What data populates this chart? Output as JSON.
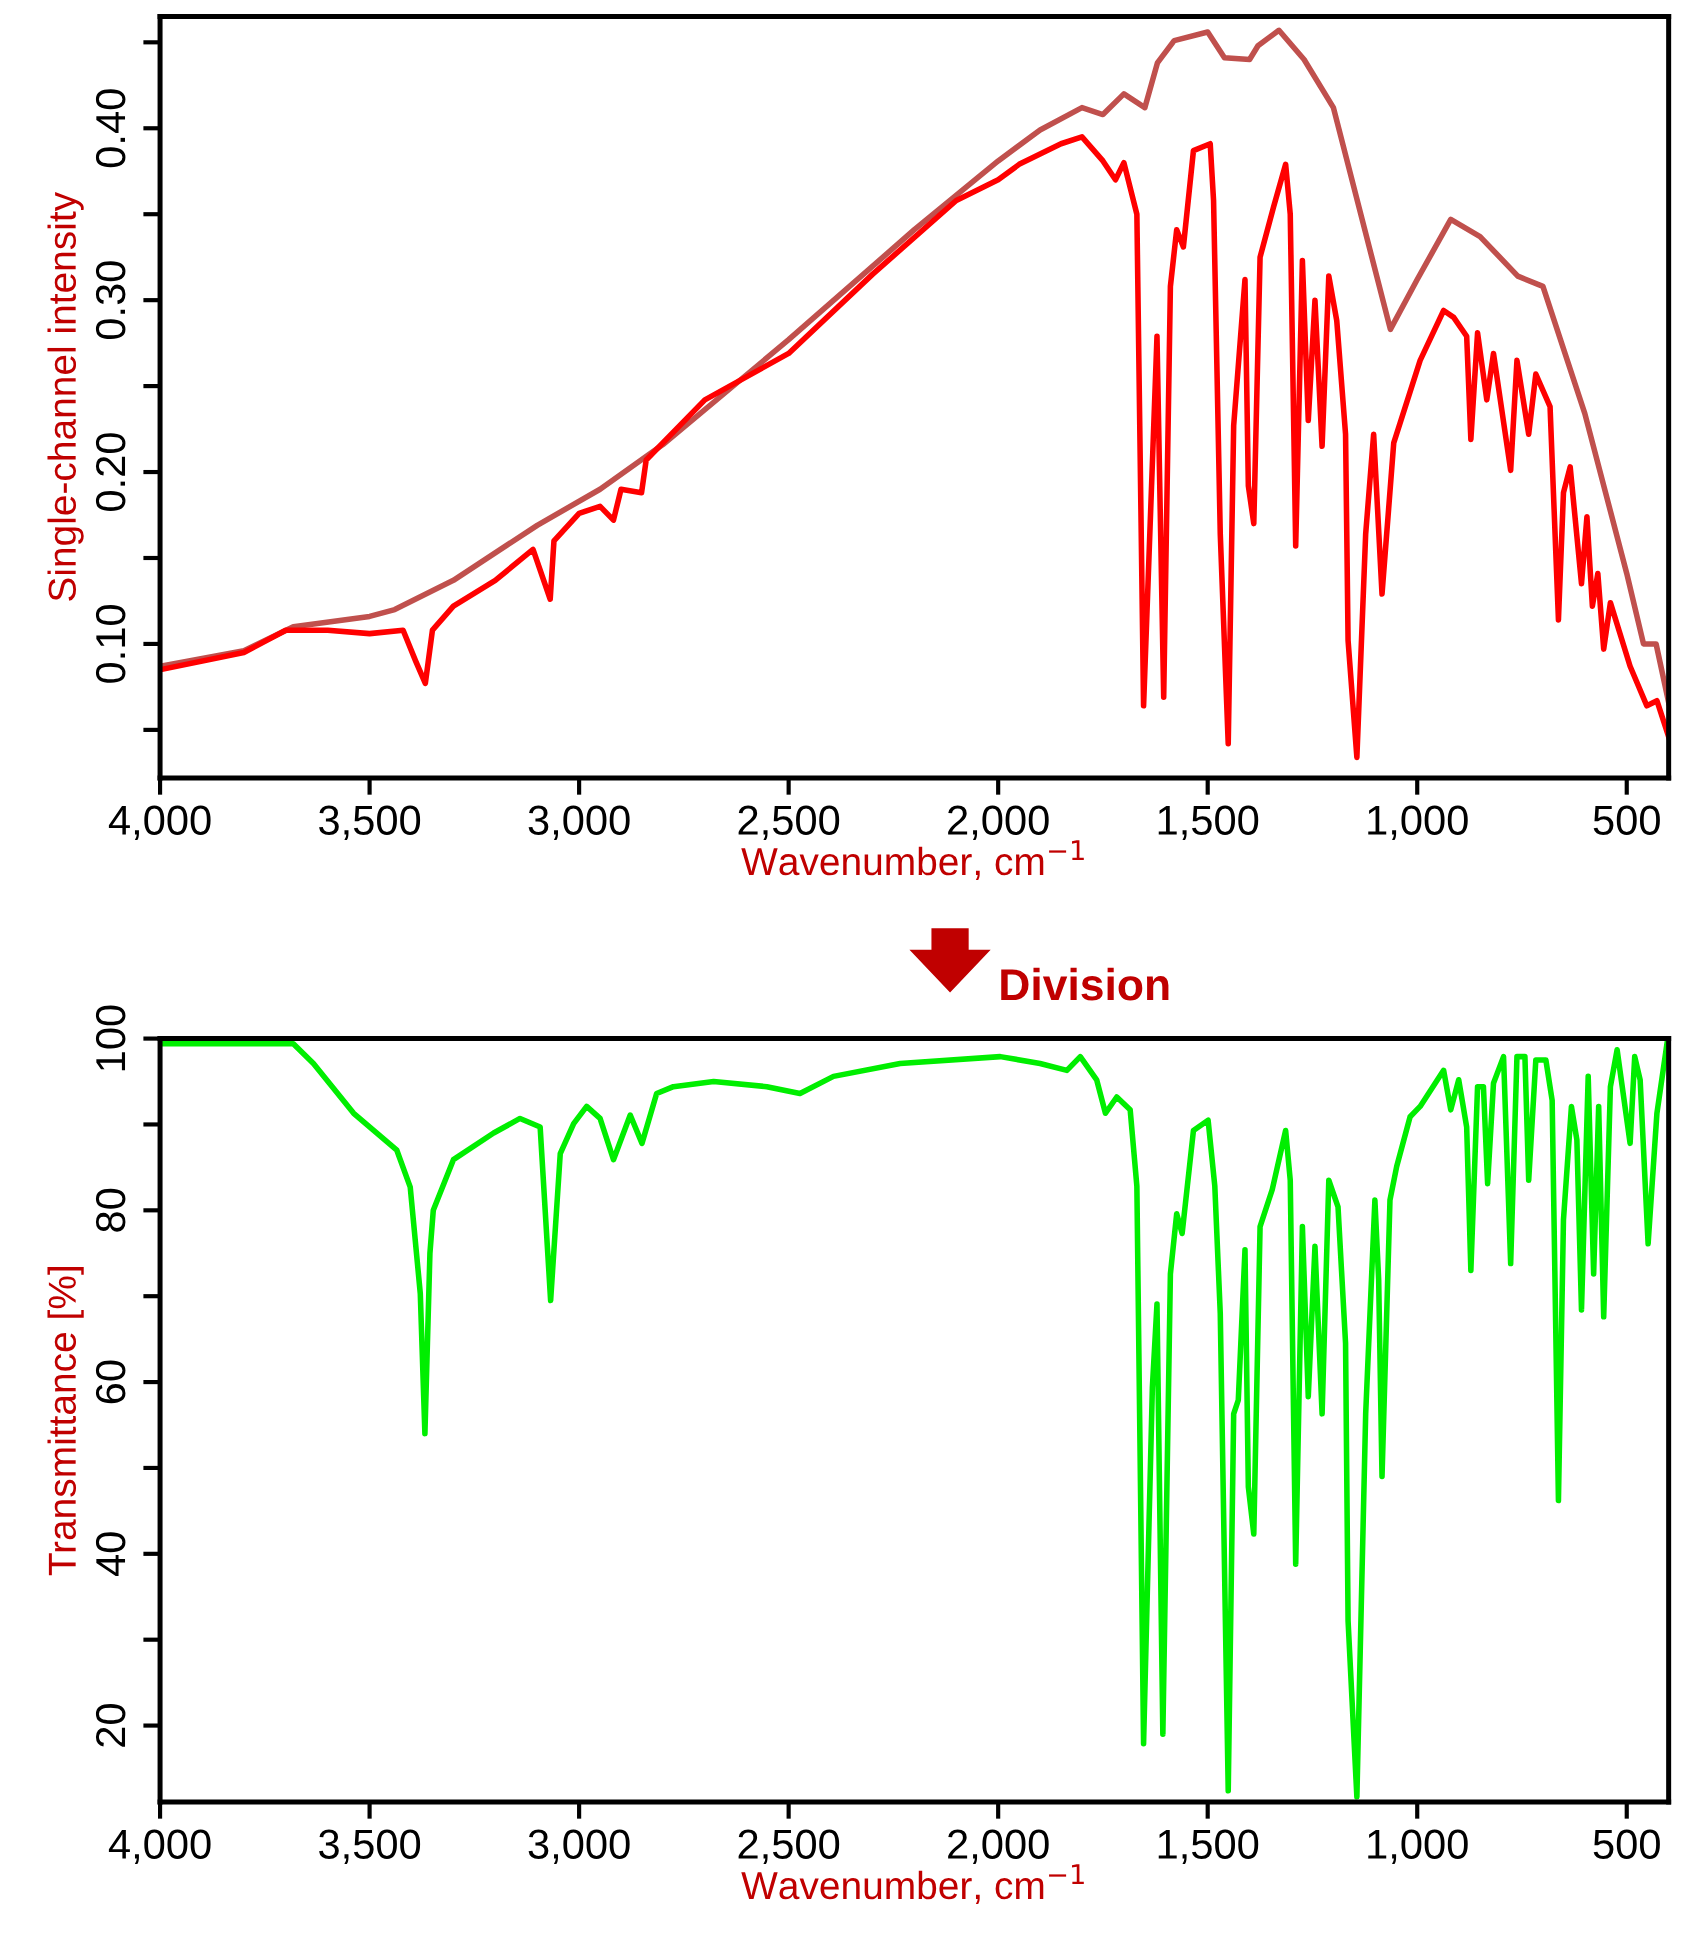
{
  "chart_data": [
    {
      "type": "line",
      "ylabel": "Single-channel intensity",
      "xlabel": "Wavenumber, cm$^{−1}$",
      "xlim": [
        4000,
        400
      ],
      "ylim": [
        0.022,
        0.465
      ],
      "xticks": [
        {
          "value": 4000,
          "label": "4,000"
        },
        {
          "value": 3500,
          "label": "3,500"
        },
        {
          "value": 3000,
          "label": "3,000"
        },
        {
          "value": 2500,
          "label": "2,500"
        },
        {
          "value": 2000,
          "label": "2,000"
        },
        {
          "value": 1500,
          "label": "1,500"
        },
        {
          "value": 1000,
          "label": "1,000"
        },
        500
      ],
      "yticks": [
        {
          "value": 0.05,
          "label": null
        },
        {
          "value": 0.1,
          "label": "0.10"
        },
        {
          "value": 0.15,
          "label": null
        },
        {
          "value": 0.2,
          "label": "0.20"
        },
        {
          "value": 0.25,
          "label": null
        },
        {
          "value": 0.3,
          "label": "0.30"
        },
        {
          "value": 0.35,
          "label": null
        },
        {
          "value": 0.4,
          "label": "0.40"
        },
        {
          "value": 0.45,
          "label": null
        }
      ],
      "grid": false,
      "marker": "none",
      "line_style": "solid",
      "series": [
        {
          "color": "#c0504d",
          "x": [
            4000,
            3800,
            3682,
            3500,
            3440,
            3300,
            3100,
            2950,
            2800,
            2500,
            2200,
            2000,
            1900,
            1800,
            1750,
            1700,
            1650,
            1620,
            1580,
            1500,
            1460,
            1400,
            1380,
            1330,
            1270,
            1200,
            1064,
            1000,
            920,
            850,
            760,
            700,
            600,
            500,
            460,
            430,
            400
          ],
          "values": [
            0.087,
            0.096,
            0.11,
            0.116,
            0.12,
            0.137,
            0.169,
            0.19,
            0.216,
            0.277,
            0.341,
            0.381,
            0.399,
            0.412,
            0.408,
            0.42,
            0.412,
            0.438,
            0.451,
            0.456,
            0.441,
            0.44,
            0.448,
            0.457,
            0.44,
            0.412,
            0.283,
            0.312,
            0.347,
            0.337,
            0.314,
            0.308,
            0.234,
            0.141,
            0.1,
            0.1,
            0.066
          ]
        },
        {
          "color": "#ff0000",
          "x": [
            4000,
            3800,
            3700,
            3600,
            3500,
            3420,
            3390,
            3367,
            3350,
            3300,
            3200,
            3110,
            3069,
            3060,
            3000,
            2950,
            2918,
            2900,
            2851,
            2840,
            2700,
            2500,
            2300,
            2100,
            2000,
            1950,
            1850,
            1800,
            1750,
            1720,
            1700,
            1669,
            1653,
            1621,
            1605,
            1589,
            1574,
            1558,
            1534,
            1494,
            1486,
            1470,
            1451,
            1438,
            1411,
            1403,
            1390,
            1375,
            1343,
            1314,
            1303,
            1290,
            1274,
            1260,
            1244,
            1227,
            1211,
            1192,
            1171,
            1165,
            1144,
            1123,
            1104,
            1084,
            1056,
            993,
            937,
            913,
            882,
            872,
            856,
            834,
            818,
            777,
            762,
            734,
            717,
            683,
            663,
            651,
            635,
            608,
            595,
            582,
            569,
            555,
            539,
            492,
            452,
            428,
            400
          ],
          "values": [
            0.085,
            0.095,
            0.108,
            0.108,
            0.106,
            0.108,
            0.09,
            0.077,
            0.108,
            0.122,
            0.137,
            0.155,
            0.126,
            0.16,
            0.176,
            0.18,
            0.172,
            0.19,
            0.188,
            0.207,
            0.242,
            0.269,
            0.315,
            0.358,
            0.37,
            0.379,
            0.391,
            0.395,
            0.381,
            0.37,
            0.38,
            0.35,
            0.064,
            0.279,
            0.069,
            0.308,
            0.341,
            0.331,
            0.387,
            0.391,
            0.358,
            0.164,
            0.042,
            0.227,
            0.312,
            0.192,
            0.17,
            0.325,
            0.354,
            0.379,
            0.35,
            0.157,
            0.323,
            0.23,
            0.3,
            0.215,
            0.314,
            0.288,
            0.222,
            0.102,
            0.034,
            0.164,
            0.222,
            0.129,
            0.217,
            0.265,
            0.294,
            0.29,
            0.279,
            0.219,
            0.281,
            0.242,
            0.269,
            0.201,
            0.265,
            0.222,
            0.257,
            0.238,
            0.114,
            0.188,
            0.203,
            0.135,
            0.174,
            0.122,
            0.141,
            0.097,
            0.124,
            0.087,
            0.064,
            0.067,
            0.046
          ]
        }
      ]
    },
    {
      "type": "line",
      "ylabel": "Transmittance [%]",
      "xlabel": "Wavenumber, cm$^{−1}$",
      "annotations": [
        "Division"
      ],
      "xlim": [
        4000,
        400
      ],
      "ylim": [
        11.1,
        100
      ],
      "xticks": [
        {
          "value": 4000,
          "label": "4,000"
        },
        {
          "value": 3500,
          "label": "3,500"
        },
        {
          "value": 3000,
          "label": "3,000"
        },
        {
          "value": 2500,
          "label": "2,500"
        },
        {
          "value": 2000,
          "label": "2,000"
        },
        {
          "value": 1500,
          "label": "1,500"
        },
        {
          "value": 1000,
          "label": "1,000"
        },
        500
      ],
      "yticks": [
        20,
        {
          "value": 30,
          "label": null
        },
        40,
        {
          "value": 50,
          "label": null
        },
        60,
        {
          "value": 70,
          "label": null
        },
        80,
        {
          "value": 90,
          "label": null
        },
        100
      ],
      "grid": false,
      "marker": "none",
      "line_style": "solid",
      "series": [
        {
          "color": "#00ee00",
          "x": [
            4000,
            3682,
            3634,
            3538,
            3435,
            3403,
            3379,
            3368,
            3356,
            3348,
            3300,
            3204,
            3141,
            3093,
            3068,
            3045,
            3013,
            2982,
            2950,
            2918,
            2878,
            2850,
            2815,
            2775,
            2679,
            2552,
            2473,
            2393,
            2234,
            1995,
            1900,
            1836,
            1804,
            1765,
            1744,
            1717,
            1685,
            1669,
            1653,
            1632,
            1621,
            1607,
            1589,
            1574,
            1561,
            1534,
            1499,
            1483,
            1470,
            1451,
            1438,
            1427,
            1411,
            1403,
            1390,
            1375,
            1346,
            1314,
            1303,
            1290,
            1274,
            1260,
            1244,
            1227,
            1211,
            1189,
            1171,
            1165,
            1144,
            1123,
            1101,
            1092,
            1084,
            1065,
            1049,
            1017,
            993,
            937,
            920,
            901,
            882,
            872,
            856,
            842,
            832,
            818,
            794,
            777,
            762,
            743,
            734,
            717,
            693,
            678,
            663,
            651,
            632,
            619,
            608,
            592,
            579,
            567,
            555,
            539,
            523,
            492,
            481,
            468,
            449,
            428,
            404
          ],
          "values": [
            99.4,
            99.4,
            97.1,
            91.3,
            87.0,
            82.7,
            70.3,
            54.0,
            75.0,
            80.0,
            85.9,
            89.0,
            90.7,
            89.7,
            69.5,
            86.6,
            90.1,
            92.1,
            90.7,
            85.9,
            91.1,
            87.8,
            93.6,
            94.4,
            95.0,
            94.4,
            93.6,
            95.6,
            97.1,
            97.9,
            97.1,
            96.3,
            97.9,
            95.2,
            91.3,
            93.2,
            91.7,
            82.8,
            17.9,
            59.4,
            69.1,
            19.0,
            72.6,
            79.6,
            77.3,
            89.3,
            90.5,
            82.8,
            68.0,
            12.4,
            56.3,
            57.9,
            75.4,
            47.8,
            42.3,
            78.1,
            82.4,
            89.3,
            83.5,
            38.8,
            78.1,
            58.3,
            75.8,
            56.3,
            83.5,
            80.4,
            64.5,
            32.2,
            11.7,
            56.3,
            81.2,
            71.9,
            49.0,
            81.2,
            85.1,
            90.9,
            92.1,
            96.3,
            91.7,
            95.2,
            89.7,
            73.0,
            94.4,
            94.4,
            83.1,
            94.8,
            97.9,
            73.8,
            97.9,
            97.9,
            83.5,
            97.5,
            97.5,
            92.8,
            46.2,
            78.9,
            92.1,
            88.2,
            68.4,
            95.6,
            72.6,
            92.1,
            67.6,
            94.4,
            98.7,
            87.8,
            97.9,
            95.2,
            76.1,
            91.3,
            99.4
          ]
        }
      ]
    }
  ]
}
